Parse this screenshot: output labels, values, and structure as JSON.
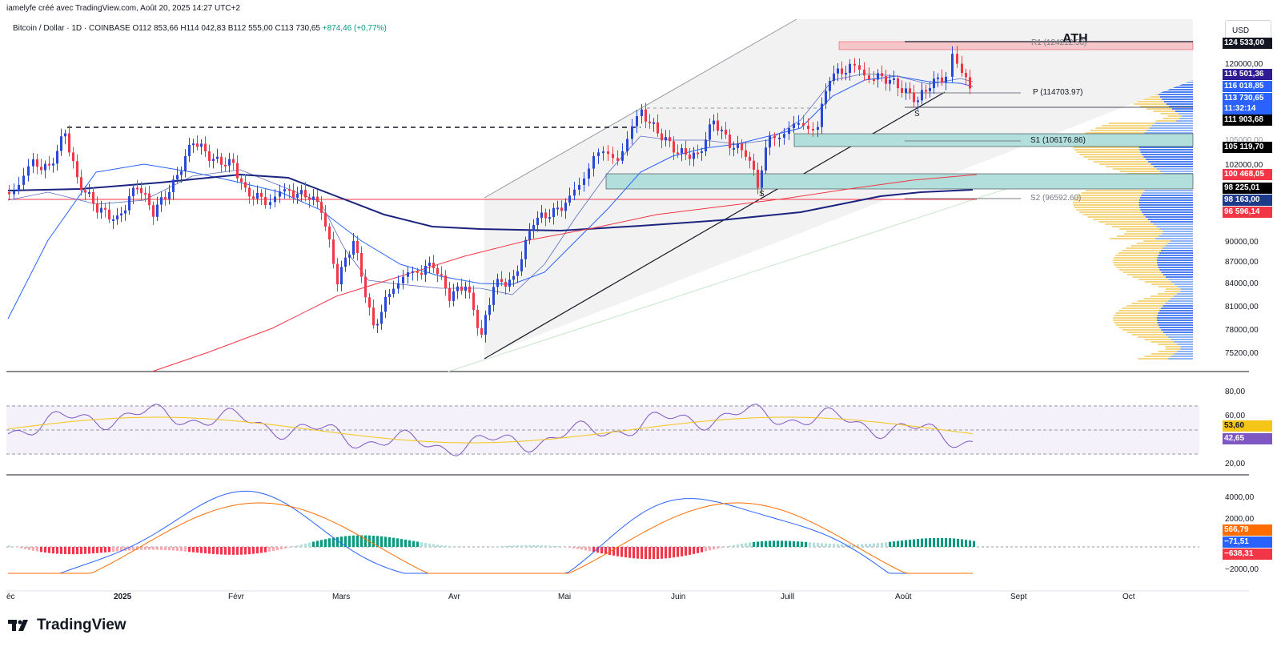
{
  "header": {
    "attribution": "iamelyfe créé avec TradingView.com, Août 20, 2025 14:27 UTC+2"
  },
  "symbol": {
    "title": "Bitcoin / Dollar · 1D · COINBASE",
    "open": "O112 853,66",
    "high": "H114 042,83",
    "low": "B112 555,00",
    "close": "C113 730,65",
    "change": "+874,46 (+0,77%)"
  },
  "currency": "USD",
  "annotations": {
    "ath": "ATH",
    "r1": "R1 (124212.53)",
    "pivot": "P (114703.97)",
    "s1": "S1 (106176.86)",
    "s2": "S2 (96592.60)",
    "swing_a": "S",
    "swing_b": "S"
  },
  "price_axis": [
    "120000,00",
    "105000,00",
    "102000,00",
    "90000,00",
    "87000,00",
    "84000,00",
    "81000,00",
    "78000,00",
    "75200,00"
  ],
  "price_labels": [
    {
      "text": "124 533,00",
      "color": "#131722"
    },
    {
      "text": "116 501,36",
      "color": "#311b92"
    },
    {
      "text": "116 018,85",
      "color": "#2962ff"
    },
    {
      "text": "113 730,65",
      "color": "#2962ff"
    },
    {
      "text": "11:32:14",
      "color": "#2962ff"
    },
    {
      "text": "111 903,68",
      "color": "#000000"
    },
    {
      "text": "105 119,70",
      "color": "#000000"
    },
    {
      "text": "100 468,05",
      "color": "#f23645"
    },
    {
      "text": "98 225,01",
      "color": "#000000"
    },
    {
      "text": "98 163,00",
      "color": "#1e3a8a"
    },
    {
      "text": "96 596,14",
      "color": "#f23645"
    }
  ],
  "rsi": {
    "axis": [
      "80,00",
      "60,00",
      "20,00"
    ],
    "labels": [
      {
        "text": "53,60",
        "color": "#f5c518"
      },
      {
        "text": "42,65",
        "color": "#7e57c2"
      }
    ]
  },
  "macd": {
    "axis": [
      "4000,00",
      "2000,00",
      "−2000,00"
    ],
    "labels": [
      {
        "text": "566,79",
        "color": "#ff6d00"
      },
      {
        "text": "−71,51",
        "color": "#2962ff"
      },
      {
        "text": "−638,31",
        "color": "#f23645"
      }
    ]
  },
  "time_axis": [
    "éc",
    "2025",
    "Févr",
    "Mars",
    "Avr",
    "Mai",
    "Juin",
    "Juill",
    "Août",
    "Sept",
    "Oct"
  ],
  "brand": "TradingView",
  "colors": {
    "up": "#089981",
    "down": "#f23645",
    "blue": "#2962ff",
    "navy": "#1a237e",
    "rsi": "#7e57c2"
  }
}
